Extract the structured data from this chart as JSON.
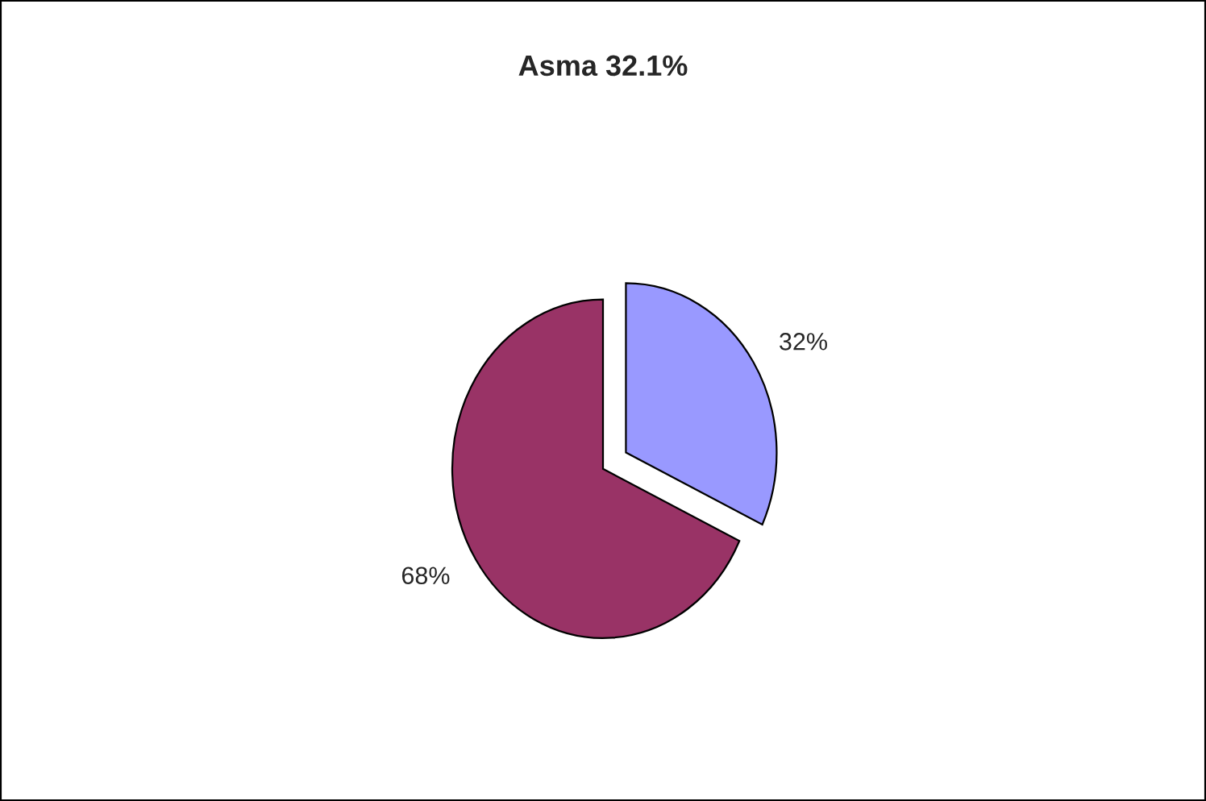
{
  "chart_data": {
    "type": "pie",
    "title": "Asma 32.1%",
    "categories": [
      null,
      null
    ],
    "values": [
      32,
      68
    ],
    "colors": [
      "#9999ff",
      "#993366"
    ],
    "value_labels": [
      "32%",
      "68%"
    ]
  }
}
